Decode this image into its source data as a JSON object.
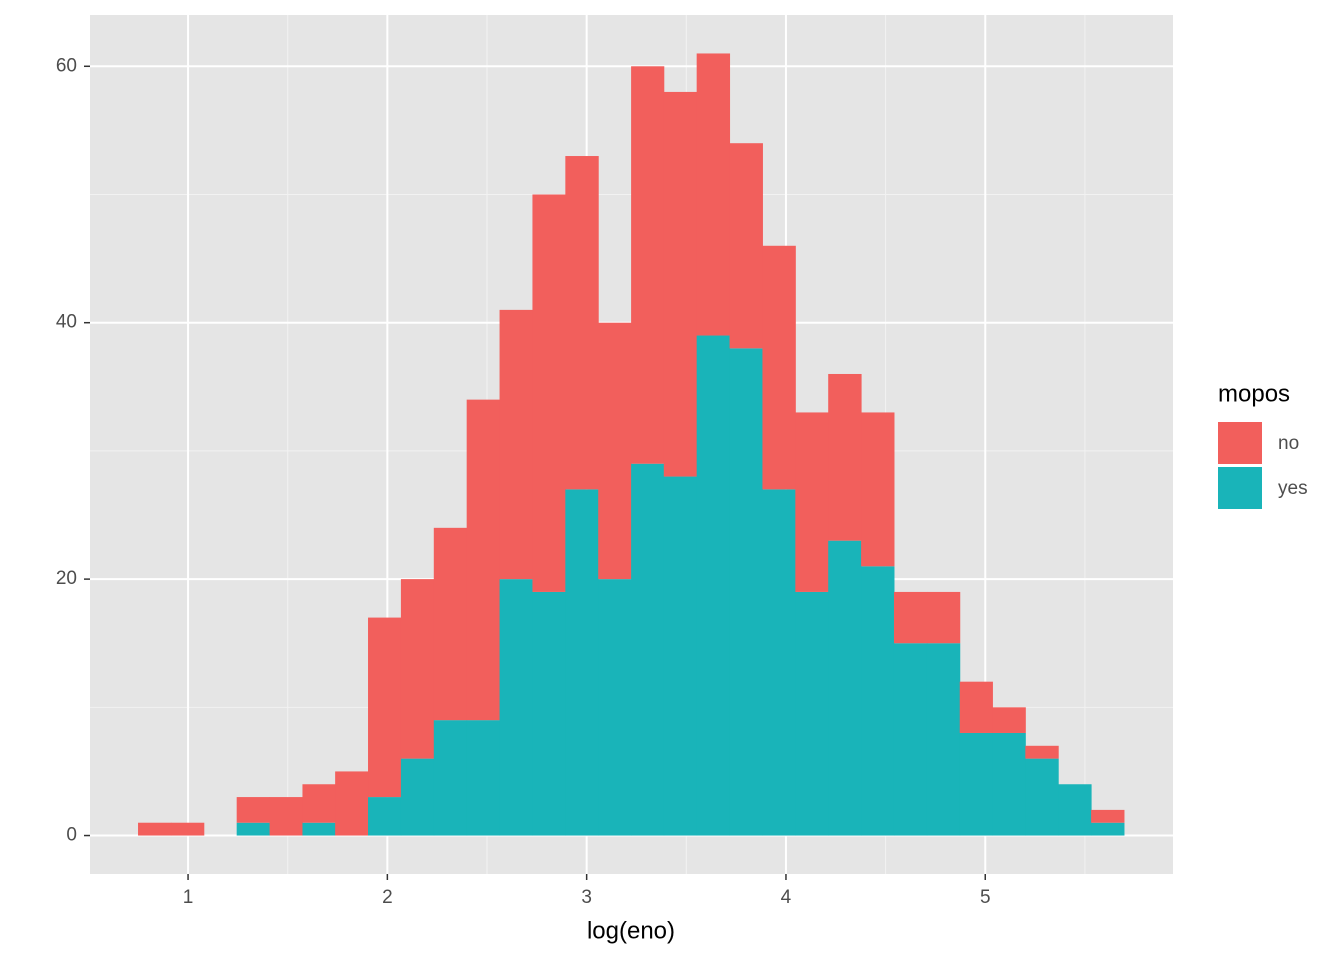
{
  "chart_data": {
    "type": "histogram",
    "x_label": "log(eno)",
    "legend_title": "mopos",
    "legend_position": "right",
    "grid": true,
    "stacked": true,
    "bins": [
      0.749,
      0.914,
      1.079,
      1.244,
      1.409,
      1.574,
      1.738,
      1.903,
      2.068,
      2.233,
      2.398,
      2.563,
      2.728,
      2.893,
      3.058,
      3.223,
      3.387,
      3.552,
      3.717,
      3.882,
      4.047,
      4.212,
      4.377,
      4.542,
      4.707,
      4.872,
      5.036,
      5.201,
      5.366,
      5.531,
      5.696
    ],
    "series": [
      {
        "name": "no",
        "color": "#F25F5C",
        "values": [
          1,
          1,
          0,
          2,
          3,
          3,
          5,
          14,
          14,
          15,
          25,
          21,
          31,
          26,
          20,
          31,
          30,
          22,
          16,
          19,
          14,
          13,
          12,
          4,
          4,
          4,
          2,
          1,
          0,
          1
        ]
      },
      {
        "name": "yes",
        "color": "#19B4B9",
        "values": [
          0,
          0,
          0,
          1,
          0,
          1,
          0,
          3,
          6,
          9,
          9,
          20,
          19,
          27,
          20,
          29,
          28,
          39,
          38,
          27,
          19,
          23,
          21,
          15,
          15,
          8,
          8,
          6,
          4,
          1
        ]
      }
    ],
    "xlim": [
      0.508,
      5.942
    ],
    "ylim": [
      -3,
      64
    ],
    "xticks": [
      1,
      2,
      3,
      4,
      5
    ],
    "yticks": [
      0,
      20,
      40,
      60
    ]
  }
}
